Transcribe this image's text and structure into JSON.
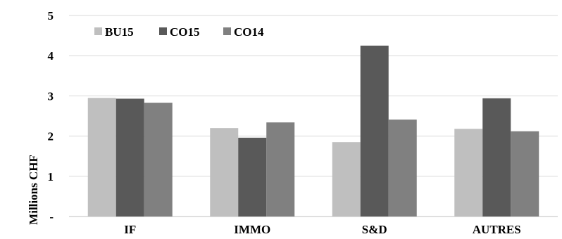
{
  "chart_data": {
    "type": "bar",
    "title": "",
    "xlabel": "",
    "ylabel": "Millions CHF",
    "ylim": [
      0,
      5
    ],
    "yticks": [
      {
        "value": 0,
        "label": "-"
      },
      {
        "value": 1,
        "label": "1"
      },
      {
        "value": 2,
        "label": "2"
      },
      {
        "value": 3,
        "label": "3"
      },
      {
        "value": 4,
        "label": "4"
      },
      {
        "value": 5,
        "label": "5"
      }
    ],
    "grid": true,
    "legend_position": "top-left",
    "categories": [
      "IF",
      "IMMO",
      "S&D",
      "AUTRES"
    ],
    "series": [
      {
        "name": "BU15",
        "color": "#bfbfbf",
        "values": [
          2.95,
          2.2,
          1.85,
          2.18
        ]
      },
      {
        "name": "CO15",
        "color": "#595959",
        "values": [
          2.93,
          1.96,
          4.25,
          2.94
        ]
      },
      {
        "name": "CO14",
        "color": "#808080",
        "values": [
          2.83,
          2.34,
          2.41,
          2.12
        ]
      }
    ]
  }
}
